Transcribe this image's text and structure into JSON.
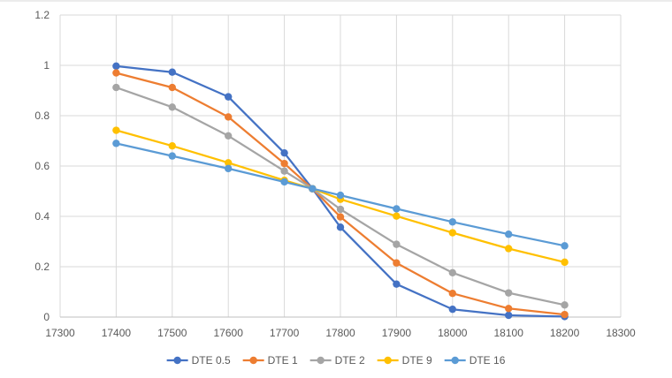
{
  "chart_data": {
    "type": "line",
    "title": "",
    "xlabel": "",
    "ylabel": "",
    "xlim": [
      17300,
      18300
    ],
    "ylim": [
      0,
      1.2
    ],
    "x_ticks": [
      17300,
      17400,
      17500,
      17600,
      17700,
      17800,
      17900,
      18000,
      18100,
      18200,
      18300
    ],
    "y_ticks": [
      0,
      0.2,
      0.4,
      0.6,
      0.8,
      1,
      1.2
    ],
    "grid": "vertical and horizontal",
    "legend_position": "bottom",
    "x": [
      17400,
      17500,
      17600,
      17700,
      17750,
      17800,
      17900,
      18000,
      18100,
      18200
    ],
    "series": [
      {
        "name": "DTE 0.5",
        "color": "#4472C4",
        "values": [
          0.997,
          0.973,
          0.875,
          0.652,
          0.51,
          0.357,
          0.131,
          0.031,
          0.007,
          0.002
        ]
      },
      {
        "name": "DTE 1",
        "color": "#ED7D31",
        "values": [
          0.97,
          0.912,
          0.795,
          0.61,
          0.51,
          0.398,
          0.215,
          0.094,
          0.034,
          0.01
        ]
      },
      {
        "name": "DTE 2",
        "color": "#A5A5A5",
        "values": [
          0.912,
          0.834,
          0.72,
          0.58,
          0.51,
          0.428,
          0.289,
          0.176,
          0.096,
          0.048
        ]
      },
      {
        "name": "DTE 9",
        "color": "#FFC000",
        "values": [
          0.742,
          0.68,
          0.613,
          0.543,
          0.51,
          0.468,
          0.401,
          0.335,
          0.272,
          0.218
        ]
      },
      {
        "name": "DTE 16",
        "color": "#5B9BD5",
        "values": [
          0.69,
          0.64,
          0.59,
          0.537,
          0.51,
          0.484,
          0.43,
          0.378,
          0.329,
          0.283
        ]
      }
    ]
  }
}
